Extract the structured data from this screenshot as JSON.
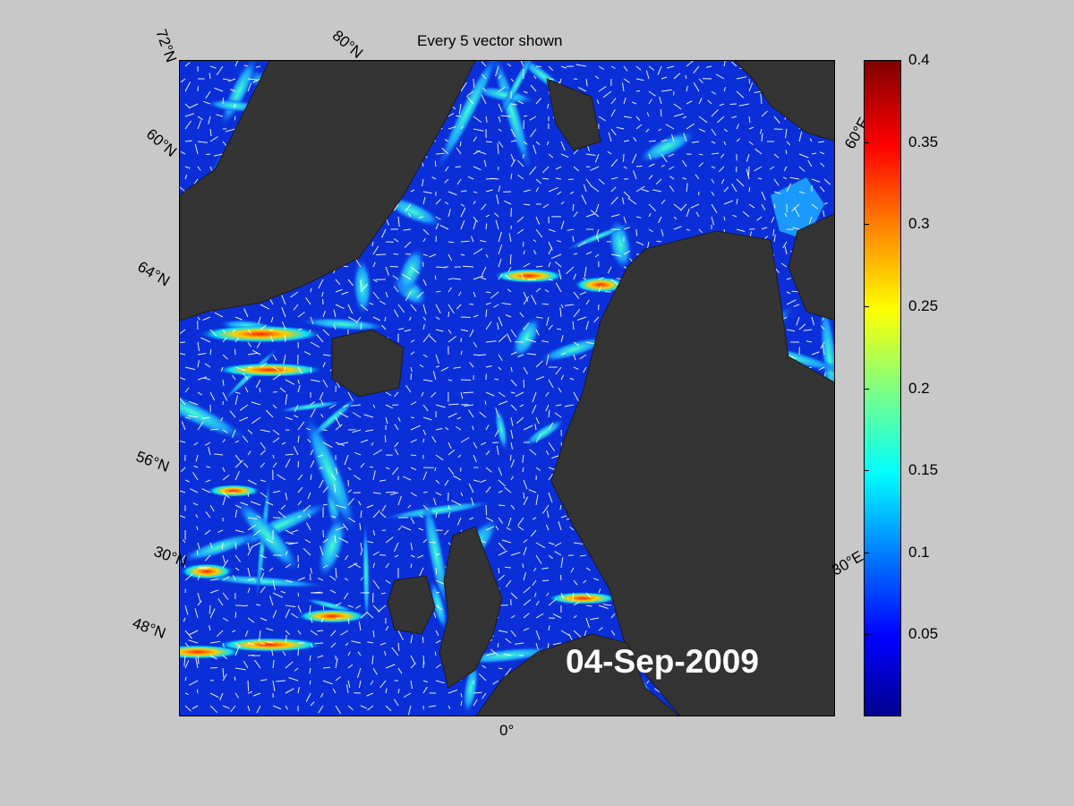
{
  "title": "Every 5 vector shown",
  "date_stamp": "04-Sep-2009",
  "map": {
    "latitude_labels": [
      "72°N",
      "60°N",
      "64°N",
      "56°N",
      "30°N",
      "48°N"
    ],
    "longitude_labels": [
      "80°N",
      "60°E",
      "30°E",
      "0°"
    ]
  },
  "colorbar": {
    "min": 0,
    "max": 0.4,
    "ticks": [
      "0.4",
      "0.35",
      "0.3",
      "0.25",
      "0.2",
      "0.15",
      "0.1",
      "0.05"
    ],
    "colormap": "jet"
  },
  "colors": {
    "background": "#c8c8c8",
    "land": "#333333",
    "ocean_low": "#0a2fd8",
    "vectors": "#ffffff"
  }
}
